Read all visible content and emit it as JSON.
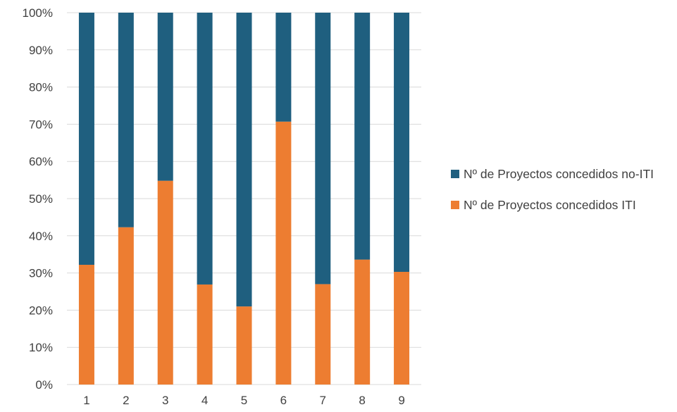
{
  "chart_data": {
    "type": "bar",
    "stacked": true,
    "percent_stacked": true,
    "categories": [
      "1",
      "2",
      "3",
      "4",
      "5",
      "6",
      "7",
      "8",
      "9"
    ],
    "series": [
      {
        "name": "Nº de Proyectos concedidos ITI",
        "color": "#ED7D31",
        "values": [
          32.2,
          42.3,
          54.8,
          26.9,
          21.0,
          70.7,
          27.0,
          33.6,
          30.3
        ]
      },
      {
        "name": "Nº de Proyectos concedidos no-ITI",
        "color": "#1F5F7F",
        "values": [
          67.8,
          57.7,
          45.2,
          73.1,
          79.0,
          29.3,
          73.0,
          66.4,
          69.7
        ]
      }
    ],
    "ylim": [
      0,
      100
    ],
    "y_ticks": [
      "0%",
      "10%",
      "20%",
      "30%",
      "40%",
      "50%",
      "60%",
      "70%",
      "80%",
      "90%",
      "100%"
    ],
    "grid": true,
    "legend_position": "right",
    "legend_order": [
      1,
      0
    ]
  }
}
